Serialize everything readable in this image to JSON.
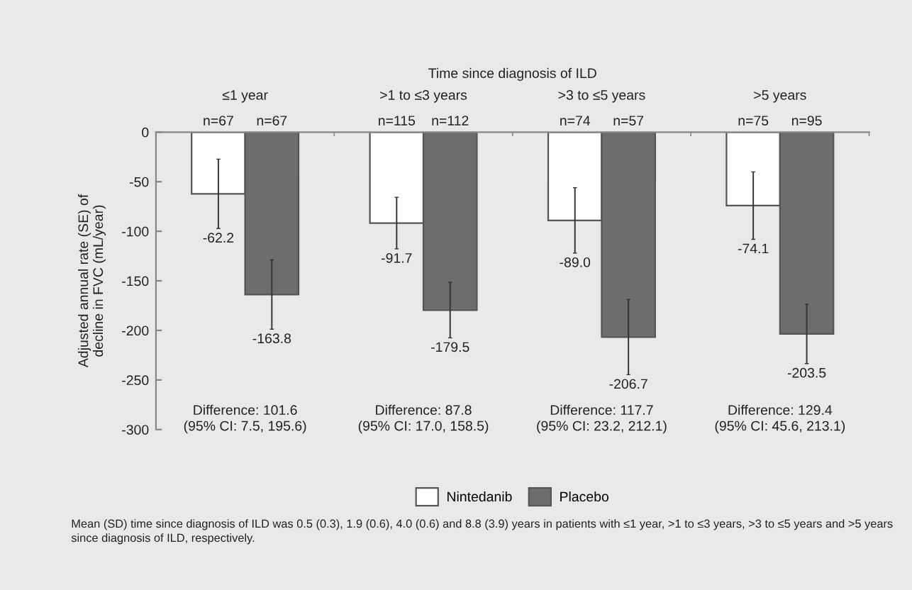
{
  "chart_data": {
    "type": "bar",
    "xlabel": "Time since diagnosis of ILD",
    "ylabel": "Adjusted annual rate (SE) of\ndecline in FVC (mL/year)",
    "categories": [
      "≤1 year",
      ">1 to ≤3 years",
      ">3 to ≤5 years",
      ">5 years"
    ],
    "series": [
      {
        "name": "Nintedanib",
        "color": "#ffffff",
        "values": [
          -62.2,
          -91.7,
          -89.0,
          -74.1
        ],
        "errors": [
          35,
          26,
          33,
          34
        ],
        "value_labels": [
          "-62.2",
          "-91.7",
          "-89.0",
          "-74.1"
        ]
      },
      {
        "name": "Placebo",
        "color": "#6d6d6d",
        "values": [
          -163.8,
          -179.5,
          -206.7,
          -203.5
        ],
        "errors": [
          35,
          28,
          38,
          30
        ],
        "value_labels": [
          "-163.8",
          "-179.5",
          "-206.7",
          "-203.5"
        ]
      }
    ],
    "ylim": [
      -300,
      0
    ],
    "yticks": [
      0,
      -50,
      -100,
      -150,
      -200,
      -250,
      -300
    ],
    "grid": false,
    "legend": "bottom",
    "annotations": [
      {
        "text": "n=67",
        "x": "≤1 year",
        "y": 0
      },
      {
        "text": "n=67",
        "x": "≤1 year",
        "y": 0
      },
      {
        "text": "n=115",
        "x": ">1 to ≤3 years",
        "y": 0
      },
      {
        "text": "n=112",
        "x": ">1 to ≤3 years",
        "y": 0
      },
      {
        "text": "n=74",
        "x": ">3 to ≤5 years",
        "y": 0
      },
      {
        "text": "n=57",
        "x": ">3 to ≤5 years",
        "y": 0
      },
      {
        "text": "n=75",
        "x": ">5 years",
        "y": 0
      },
      {
        "text": "n=95",
        "x": ">5 years",
        "y": 0
      },
      "Difference: 101.6\n(95% CI: 7.5, 195.6)",
      "Difference: 87.8\n(95% CI: 17.0, 158.5)",
      "Difference: 117.7\n(95% CI: 23.2, 212.1)",
      "Difference: 129.4\n(95% CI: 45.6, 213.1)",
      "Mean (SD) time since diagnosis of ILD was 0.5 (0.3), 1.9 (0.6), 4.0 (0.6) and 8.8 (3.9) years in patients with ≤1 year, >1 to ≤3 years, >3 to ≤5 years and >5 years since diagnosis of ILD, respectively."
    ]
  }
}
